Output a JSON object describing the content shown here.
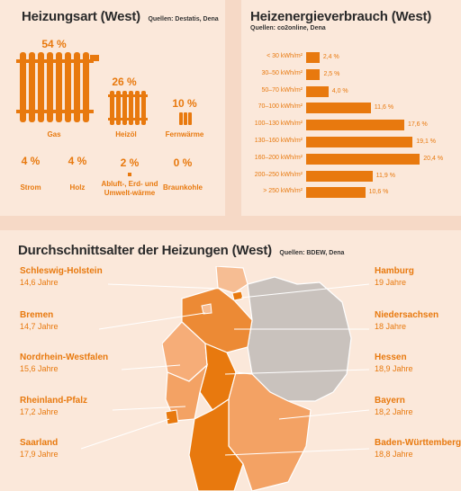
{
  "heating_type": {
    "title": "Heizungsart (West)",
    "sources": "Quellen: Destatis, Dena",
    "items": [
      {
        "label": "Gas",
        "percent": "54 %",
        "value": 54
      },
      {
        "label": "Heizöl",
        "percent": "26 %",
        "value": 26
      },
      {
        "label": "Fernwärme",
        "percent": "10 %",
        "value": 10
      },
      {
        "label": "Strom",
        "percent": "4 %",
        "value": 4
      },
      {
        "label": "Holz",
        "percent": "4 %",
        "value": 4
      },
      {
        "label": "Abluft-, Erd- und Umwelt-wärme",
        "percent": "2 %",
        "value": 2
      },
      {
        "label": "Braunkohle",
        "percent": "0 %",
        "value": 0
      }
    ]
  },
  "energy_use": {
    "title": "Heizenergieverbrauch (West)",
    "sources": "Quellen: co2online, Dena"
  },
  "chart_data": {
    "type": "bar",
    "orientation": "horizontal",
    "categories": [
      "< 30 kWh/m²",
      "30–50 kWh/m²",
      "50–70 kWh/m²",
      "70–100 kWh/m²",
      "100–130 kWh/m²",
      "130–160 kWh/m²",
      "160–200 kWh/m²",
      "200–250 kWh/m²",
      "> 250 kWh/m²"
    ],
    "values": [
      2.4,
      2.5,
      4.0,
      11.6,
      17.6,
      19.1,
      20.4,
      11.9,
      10.6
    ],
    "value_labels": [
      "2,4 %",
      "2,5 %",
      "4,0 %",
      "11,6 %",
      "17,6 %",
      "19,1 %",
      "20,4 %",
      "11,9 %",
      "10,6 %"
    ],
    "title": "Heizenergieverbrauch (West)",
    "xlim": [
      0,
      21
    ],
    "color": "#e8790e"
  },
  "heating_age": {
    "title": "Durchschnittsalter der Heizungen (West)",
    "sources": "Quellen: BDEW, Dena",
    "left_states": [
      {
        "name": "Schleswig-Holstein",
        "age": "14,6 Jahre"
      },
      {
        "name": "Bremen",
        "age": "14,7 Jahre"
      },
      {
        "name": "Nordrhein-Westfalen",
        "age": "15,6 Jahre"
      },
      {
        "name": "Rheinland-Pfalz",
        "age": "17,2 Jahre"
      },
      {
        "name": "Saarland",
        "age": "17,9 Jahre"
      }
    ],
    "right_states": [
      {
        "name": "Hamburg",
        "age": "19 Jahre"
      },
      {
        "name": "Niedersachsen",
        "age": "18 Jahre"
      },
      {
        "name": "Hessen",
        "age": "18,9 Jahre"
      },
      {
        "name": "Bayern",
        "age": "18,2 Jahre"
      },
      {
        "name": "Baden-Württemberg",
        "age": "18,8 Jahre"
      }
    ]
  },
  "colors": {
    "accent": "#e8790e",
    "panel": "#fbe8da",
    "background": "#f6d9c6",
    "east_gray": "#c9c2bd"
  }
}
